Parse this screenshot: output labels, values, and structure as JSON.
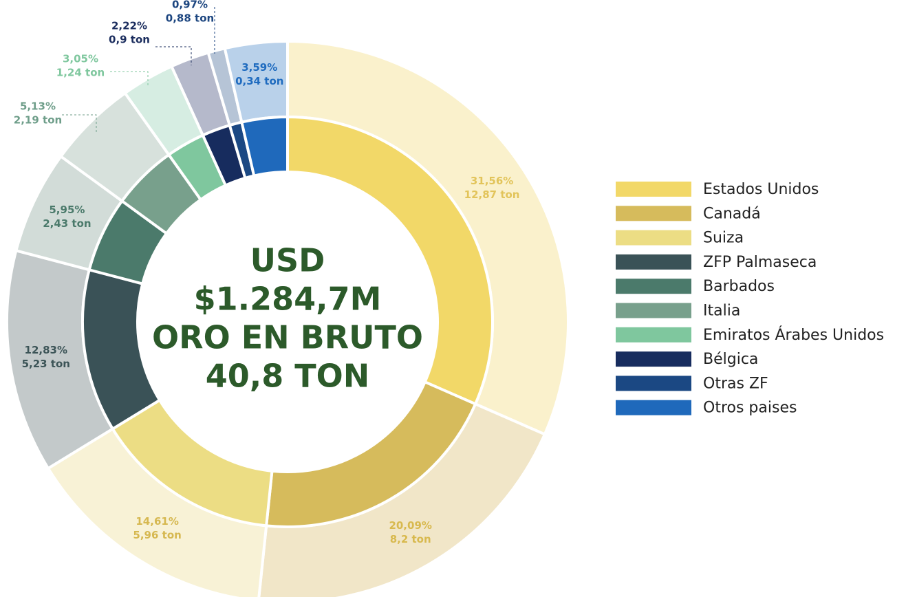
{
  "chart_data": {
    "type": "donut",
    "center_text": [
      "USD",
      "$1.284,7M",
      "ORO EN BRUTO",
      "40,8 TON"
    ],
    "categories": [
      "Estados Unidos",
      "Canadá",
      "Suiza",
      "ZFP Palmaseca",
      "Barbados",
      "Italia",
      "Emiratos Árabes Unidos",
      "Bélgica",
      "Otras ZF",
      "Otros paises"
    ],
    "values": [
      31.56,
      20.09,
      14.61,
      12.83,
      5.95,
      5.13,
      3.05,
      2.22,
      0.97,
      3.59
    ],
    "value_labels": [
      "31,56%",
      "20,09%",
      "14,61%",
      "12,83%",
      "5,95%",
      "5,13%",
      "3,05%",
      "2,22%",
      "0,97%",
      "3,59%"
    ],
    "tons": [
      12.87,
      8.2,
      5.96,
      5.23,
      2.43,
      2.19,
      1.24,
      0.9,
      0.88,
      0.34
    ],
    "ton_labels": [
      "12,87 ton",
      "8,2 ton",
      "5,96 ton",
      "5,23 ton",
      "2,43 ton",
      "2,19 ton",
      "1,24 ton",
      "0,9 ton",
      "0,88 ton",
      "0,34 ton"
    ],
    "colors": [
      "#f2d868",
      "#d6bb5c",
      "#ecdd84",
      "#3a5257",
      "#4b7a6b",
      "#78a08c",
      "#7fc79e",
      "#172c5e",
      "#1b4883",
      "#1f69bb"
    ],
    "outer_colors": [
      "#faf1cc",
      "#f1e6c8",
      "#f8f2d6",
      "#c3c9ca",
      "#d2dcd8",
      "#d7e1dc",
      "#d6ede2",
      "#b5b9cb",
      "#b6c4d6",
      "#b9d1ea"
    ],
    "label_colors": [
      "#e2c45a",
      "#d8b94e",
      "#d6b850",
      "#3c5457",
      "#4b7a6b",
      "#6f9e8a",
      "#7fc79e",
      "#1b2d5e",
      "#1d4680",
      "#1f6bbf"
    ],
    "legend": "right"
  }
}
